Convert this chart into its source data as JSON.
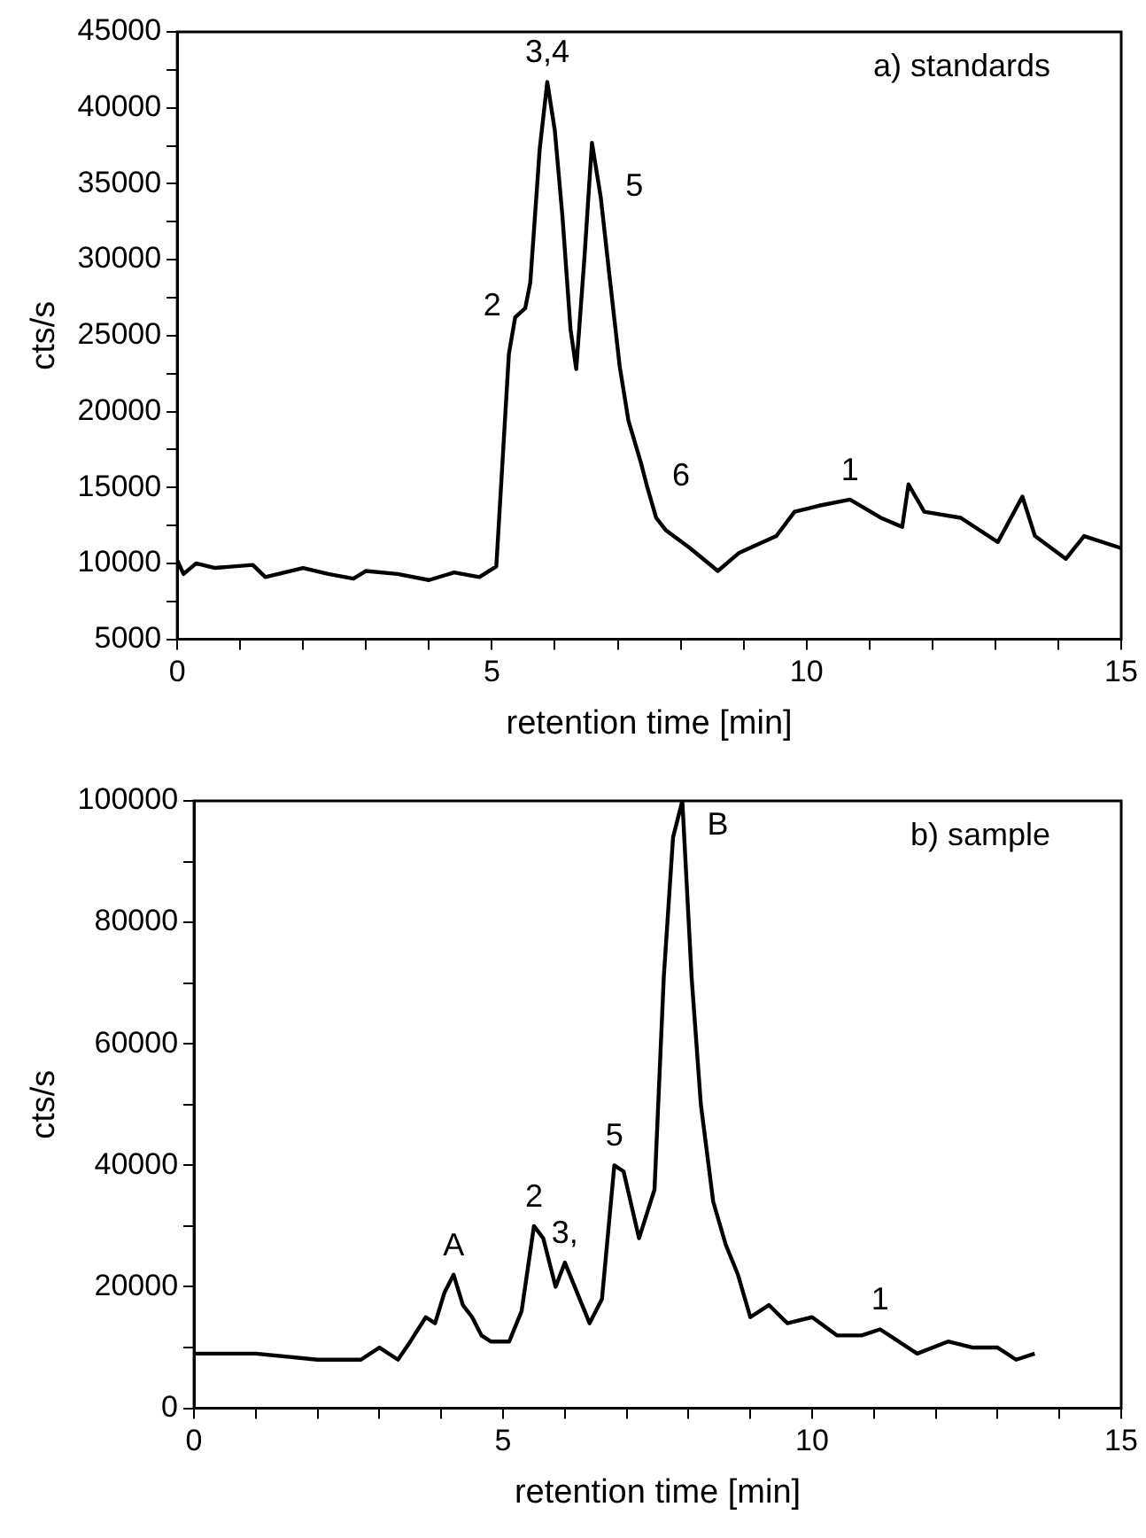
{
  "chart_data": [
    {
      "type": "line",
      "title": "a) standards",
      "xlabel": "retention time [min]",
      "ylabel": "cts/s",
      "color": "#000000",
      "x": [
        0,
        0.1,
        0.3,
        0.6,
        1.2,
        1.4,
        2.0,
        2.4,
        2.8,
        3.0,
        3.5,
        4.0,
        4.4,
        4.8,
        5.07,
        5.27,
        5.37,
        5.53,
        5.61,
        5.76,
        5.88,
        6.0,
        6.12,
        6.25,
        6.34,
        6.47,
        6.59,
        6.73,
        6.88,
        7.03,
        7.17,
        7.37,
        7.47,
        7.61,
        7.76,
        8.15,
        8.59,
        8.93,
        9.52,
        9.81,
        10.2,
        10.69,
        11.18,
        11.52,
        11.62,
        11.87,
        12.45,
        13.04,
        13.43,
        13.63,
        14.12,
        14.41,
        15
      ],
      "values": [
        10200,
        9300,
        10000,
        9700,
        9900,
        9100,
        9700,
        9300,
        9000,
        9500,
        9300,
        8900,
        9400,
        9100,
        9800,
        23800,
        26200,
        26800,
        28500,
        37300,
        41700,
        38500,
        32900,
        25400,
        22800,
        30100,
        37700,
        34100,
        28500,
        23000,
        19400,
        16600,
        15000,
        13000,
        12200,
        11000,
        9500,
        10700,
        11800,
        13400,
        13800,
        14200,
        13000,
        12400,
        15200,
        13400,
        13000,
        11400,
        14400,
        11800,
        10300,
        11800,
        11000
      ],
      "xlim": [
        0,
        15
      ],
      "ylim": [
        5000,
        45000
      ],
      "xticks": [
        0,
        {
          "value": 1,
          "label": null
        },
        {
          "value": 2,
          "label": null
        },
        {
          "value": 3,
          "label": null
        },
        {
          "value": 4,
          "label": null
        },
        5,
        {
          "value": 6,
          "label": null
        },
        {
          "value": 7,
          "label": null
        },
        {
          "value": 8,
          "label": null
        },
        {
          "value": 9,
          "label": null
        },
        10,
        {
          "value": 11,
          "label": null
        },
        {
          "value": 12,
          "label": null
        },
        {
          "value": 13,
          "label": null
        },
        {
          "value": 14,
          "label": null
        },
        15
      ],
      "yticks": [
        5000,
        {
          "value": 7500,
          "label": null
        },
        10000,
        {
          "value": 12500,
          "label": null
        },
        15000,
        {
          "value": 17500,
          "label": null
        },
        20000,
        {
          "value": 22500,
          "label": null
        },
        25000,
        {
          "value": 27500,
          "label": null
        },
        30000,
        {
          "value": 32500,
          "label": null
        },
        35000,
        {
          "value": 37500,
          "label": null
        },
        40000,
        {
          "value": 42500,
          "label": null
        },
        45000
      ],
      "annotations": [
        {
          "text": "3,4",
          "x": 5.88,
          "y": 41700
        },
        {
          "text": "2",
          "x": 5.37,
          "y": 26200
        },
        {
          "text": "5",
          "x": 6.73,
          "y": 34100
        },
        {
          "text": "6",
          "x": 7.47,
          "y": 15000
        },
        {
          "text": "1",
          "x": 10.69,
          "y": 14200
        }
      ]
    },
    {
      "type": "line",
      "title": "b) sample",
      "xlabel": "retention time [min]",
      "ylabel": "cts/s",
      "color": "#000000",
      "x": [
        0,
        1.0,
        2.0,
        2.7,
        3.0,
        3.3,
        3.5,
        3.75,
        3.9,
        4.05,
        4.2,
        4.35,
        4.5,
        4.65,
        4.8,
        5.1,
        5.3,
        5.5,
        5.65,
        5.85,
        6.0,
        6.2,
        6.4,
        6.6,
        6.8,
        6.95,
        7.2,
        7.45,
        7.6,
        7.75,
        7.9,
        8.05,
        8.2,
        8.4,
        8.6,
        8.8,
        9.0,
        9.3,
        9.6,
        10.0,
        10.4,
        10.8,
        11.1,
        11.4,
        11.7,
        12.2,
        12.6,
        13.0,
        13.3,
        13.6
      ],
      "values": [
        9000,
        9000,
        8000,
        8000,
        10000,
        8000,
        11000,
        15000,
        14000,
        19000,
        22000,
        17000,
        15000,
        12000,
        11000,
        11000,
        16000,
        30000,
        28000,
        20000,
        24000,
        19000,
        14000,
        18000,
        40000,
        39000,
        28000,
        36000,
        71000,
        94000,
        100000,
        71000,
        50000,
        34000,
        27000,
        22000,
        15000,
        17000,
        14000,
        15000,
        12000,
        12000,
        13000,
        11000,
        9000,
        11000,
        10000,
        10000,
        8000,
        9000
      ],
      "xlim": [
        0,
        15
      ],
      "ylim": [
        0,
        100000
      ],
      "xticks": [
        0,
        {
          "value": 1,
          "label": null
        },
        {
          "value": 2,
          "label": null
        },
        {
          "value": 3,
          "label": null
        },
        {
          "value": 4,
          "label": null
        },
        5,
        {
          "value": 6,
          "label": null
        },
        {
          "value": 7,
          "label": null
        },
        {
          "value": 8,
          "label": null
        },
        {
          "value": 9,
          "label": null
        },
        10,
        {
          "value": 11,
          "label": null
        },
        {
          "value": 12,
          "label": null
        },
        {
          "value": 13,
          "label": null
        },
        {
          "value": 14,
          "label": null
        },
        15
      ],
      "yticks": [
        0,
        {
          "value": 10000,
          "label": null
        },
        20000,
        {
          "value": 30000,
          "label": null
        },
        40000,
        {
          "value": 50000,
          "label": null
        },
        60000,
        {
          "value": 70000,
          "label": null
        },
        80000,
        {
          "value": 90000,
          "label": null
        },
        100000
      ],
      "annotations": [
        {
          "text": "A",
          "x": 4.2,
          "y": 22000
        },
        {
          "text": "2",
          "x": 5.5,
          "y": 30000
        },
        {
          "text": "3,",
          "x": 6.0,
          "y": 24000
        },
        {
          "text": "5",
          "x": 6.8,
          "y": 40000
        },
        {
          "text": "B",
          "x": 7.9,
          "y": 100000
        },
        {
          "text": "1",
          "x": 11.1,
          "y": 13000
        }
      ]
    }
  ]
}
